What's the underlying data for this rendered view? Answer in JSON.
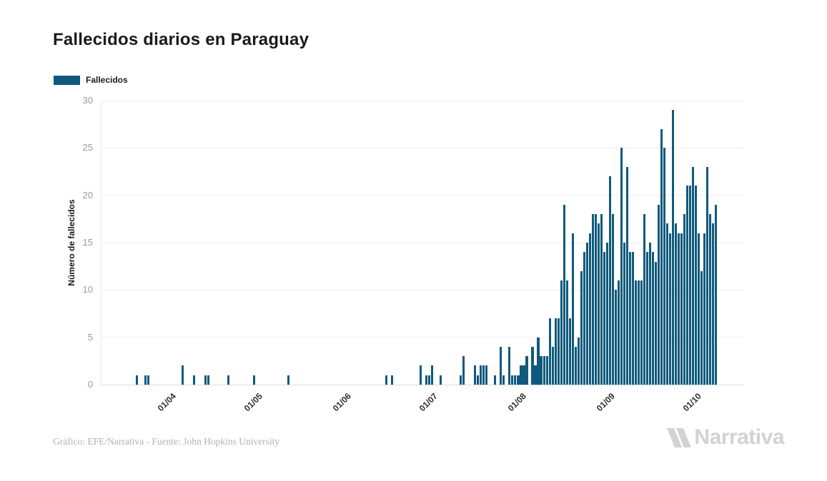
{
  "header": {
    "title": "Fallecidos diarios en Paraguay"
  },
  "legend": {
    "label": "Fallecidos",
    "color": "#0f5a7c"
  },
  "footer": {
    "credit": "Gráfico: EFE/Narrativa - Fuente: John Hopkins University",
    "logo_text": "Narrativa"
  },
  "colors": {
    "bar": "#0f5a7c",
    "grid": "#ededed",
    "axis_line": "#d7dcdf",
    "y_tick_text": "#9a9a9a",
    "x_tick_text": "#2f2f2f",
    "title_text": "#1b1b1b",
    "credit_text": "#b2b2b2",
    "logo_gray": "#d2d2d2"
  },
  "chart_data": {
    "type": "bar",
    "title": "Fallecidos diarios en Paraguay",
    "xlabel": "",
    "ylabel": "Número de fallecidos",
    "ylim": [
      0,
      30
    ],
    "y_ticks": [
      0,
      5,
      10,
      15,
      20,
      25,
      30
    ],
    "y_tick_labels": [
      "0",
      "5",
      "10",
      "15",
      "20",
      "25",
      "30"
    ],
    "x_range": [
      "2020-03-10",
      "2020-10-20"
    ],
    "x_ticks": [
      {
        "label": "01/04",
        "date": "2020-04-01"
      },
      {
        "label": "01/05",
        "date": "2020-05-01"
      },
      {
        "label": "01/06",
        "date": "2020-06-01"
      },
      {
        "label": "01/07",
        "date": "2020-07-01"
      },
      {
        "label": "01/08",
        "date": "2020-08-01"
      },
      {
        "label": "01/09",
        "date": "2020-09-01"
      },
      {
        "label": "01/10",
        "date": "2020-10-01"
      }
    ],
    "grid": true,
    "legend_position": "top-left",
    "zero_for_unlisted_days": true,
    "series": [
      {
        "name": "Fallecidos",
        "color": "#0f5a7c",
        "points": [
          [
            "2020-03-22",
            1
          ],
          [
            "2020-03-25",
            1
          ],
          [
            "2020-03-26",
            1
          ],
          [
            "2020-04-07",
            2
          ],
          [
            "2020-04-11",
            1
          ],
          [
            "2020-04-15",
            1
          ],
          [
            "2020-04-16",
            1
          ],
          [
            "2020-04-23",
            1
          ],
          [
            "2020-05-02",
            1
          ],
          [
            "2020-05-14",
            1
          ],
          [
            "2020-06-17",
            1
          ],
          [
            "2020-06-19",
            1
          ],
          [
            "2020-06-29",
            2
          ],
          [
            "2020-07-01",
            1
          ],
          [
            "2020-07-02",
            1
          ],
          [
            "2020-07-03",
            2
          ],
          [
            "2020-07-06",
            1
          ],
          [
            "2020-07-13",
            1
          ],
          [
            "2020-07-14",
            3
          ],
          [
            "2020-07-18",
            2
          ],
          [
            "2020-07-19",
            1
          ],
          [
            "2020-07-20",
            2
          ],
          [
            "2020-07-21",
            2
          ],
          [
            "2020-07-22",
            2
          ],
          [
            "2020-07-25",
            1
          ],
          [
            "2020-07-27",
            4
          ],
          [
            "2020-07-28",
            1
          ],
          [
            "2020-07-30",
            4
          ],
          [
            "2020-07-31",
            1
          ],
          [
            "2020-08-01",
            1
          ],
          [
            "2020-08-02",
            1
          ],
          [
            "2020-08-03",
            2
          ],
          [
            "2020-08-04",
            2
          ],
          [
            "2020-08-05",
            3
          ],
          [
            "2020-08-07",
            4
          ],
          [
            "2020-08-08",
            2
          ],
          [
            "2020-08-09",
            5
          ],
          [
            "2020-08-10",
            3
          ],
          [
            "2020-08-11",
            3
          ],
          [
            "2020-08-12",
            3
          ],
          [
            "2020-08-13",
            7
          ],
          [
            "2020-08-14",
            4
          ],
          [
            "2020-08-15",
            7
          ],
          [
            "2020-08-16",
            7
          ],
          [
            "2020-08-17",
            11
          ],
          [
            "2020-08-18",
            19
          ],
          [
            "2020-08-19",
            11
          ],
          [
            "2020-08-20",
            7
          ],
          [
            "2020-08-21",
            16
          ],
          [
            "2020-08-22",
            4
          ],
          [
            "2020-08-23",
            5
          ],
          [
            "2020-08-24",
            12
          ],
          [
            "2020-08-25",
            14
          ],
          [
            "2020-08-26",
            15
          ],
          [
            "2020-08-27",
            16
          ],
          [
            "2020-08-28",
            18
          ],
          [
            "2020-08-29",
            18
          ],
          [
            "2020-08-30",
            17
          ],
          [
            "2020-08-31",
            18
          ],
          [
            "2020-09-01",
            14
          ],
          [
            "2020-09-02",
            15
          ],
          [
            "2020-09-03",
            22
          ],
          [
            "2020-09-04",
            18
          ],
          [
            "2020-09-05",
            10
          ],
          [
            "2020-09-06",
            11
          ],
          [
            "2020-09-07",
            25
          ],
          [
            "2020-09-08",
            15
          ],
          [
            "2020-09-09",
            23
          ],
          [
            "2020-09-10",
            14
          ],
          [
            "2020-09-11",
            14
          ],
          [
            "2020-09-12",
            11
          ],
          [
            "2020-09-13",
            11
          ],
          [
            "2020-09-14",
            11
          ],
          [
            "2020-09-15",
            18
          ],
          [
            "2020-09-16",
            14
          ],
          [
            "2020-09-17",
            15
          ],
          [
            "2020-09-18",
            14
          ],
          [
            "2020-09-19",
            13
          ],
          [
            "2020-09-20",
            19
          ],
          [
            "2020-09-21",
            27
          ],
          [
            "2020-09-22",
            25
          ],
          [
            "2020-09-23",
            17
          ],
          [
            "2020-09-24",
            16
          ],
          [
            "2020-09-25",
            29
          ],
          [
            "2020-09-26",
            17
          ],
          [
            "2020-09-27",
            16
          ],
          [
            "2020-09-28",
            16
          ],
          [
            "2020-09-29",
            18
          ],
          [
            "2020-09-30",
            21
          ],
          [
            "2020-10-01",
            21
          ],
          [
            "2020-10-02",
            23
          ],
          [
            "2020-10-03",
            21
          ],
          [
            "2020-10-04",
            16
          ],
          [
            "2020-10-05",
            12
          ],
          [
            "2020-10-06",
            16
          ],
          [
            "2020-10-07",
            23
          ],
          [
            "2020-10-08",
            18
          ],
          [
            "2020-10-09",
            17
          ],
          [
            "2020-10-10",
            19
          ]
        ]
      }
    ]
  }
}
